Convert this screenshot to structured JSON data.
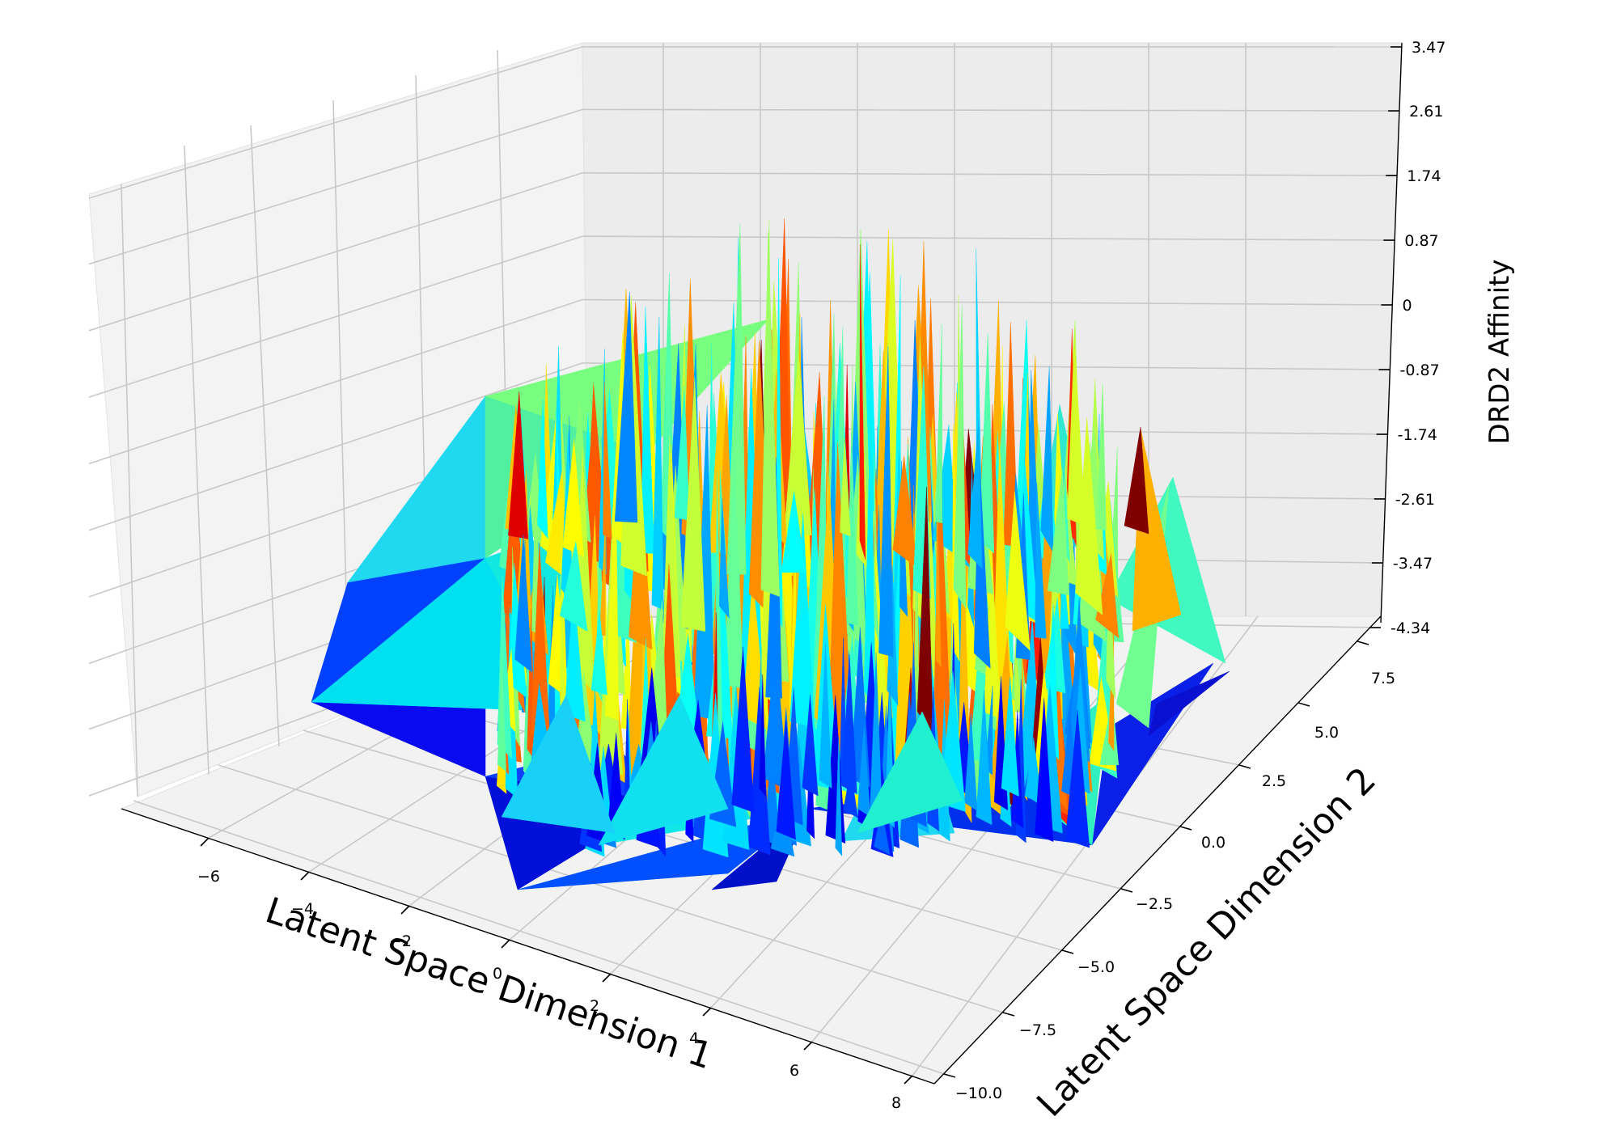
{
  "chart_data": {
    "type": "3d-surface",
    "xlabel": "Latent Space Dimension 1",
    "ylabel": "Latent Space Dimension 2",
    "zlabel": "DRD2 Affinity",
    "x_ticks": [
      "−6",
      "−4",
      "−2",
      "0",
      "2",
      "4",
      "6",
      "8"
    ],
    "y_ticks": [
      "−10.0",
      "−7.5",
      "−5.0",
      "−2.5",
      "0.0",
      "2.5",
      "5.0",
      "7.5"
    ],
    "z_ticks": [
      "-4.34",
      "-3.47",
      "-2.61",
      "-1.74",
      "-0.87",
      "0",
      "0.87",
      "1.74",
      "2.61",
      "3.47"
    ],
    "xlim": [
      -7,
      8
    ],
    "ylim": [
      -10,
      8
    ],
    "zlim": [
      -4.34,
      3.47
    ],
    "grid": true,
    "colormap": "jet",
    "colormap_colors": [
      "#00007f",
      "#0000ff",
      "#007fff",
      "#00ffff",
      "#7fff7f",
      "#ffff00",
      "#ff7f00",
      "#ff0000",
      "#7f0000"
    ],
    "pane_color": "#f2f2f2"
  }
}
